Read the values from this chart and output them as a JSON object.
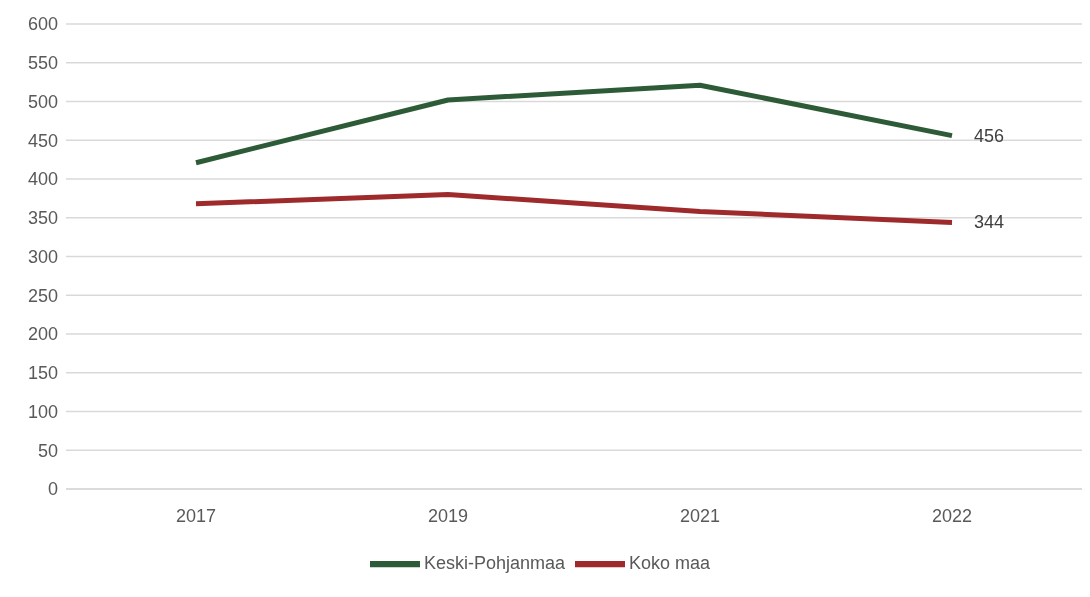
{
  "chart_data": {
    "type": "line",
    "categories": [
      "2017",
      "2019",
      "2021",
      "2022"
    ],
    "series": [
      {
        "name": "Keski-Pohjanmaa",
        "color": "#2e5b37",
        "values": [
          421,
          502,
          521,
          456
        ],
        "value_labels": [
          null,
          null,
          null,
          "456"
        ]
      },
      {
        "name": "Koko maa",
        "color": "#9e2a2b",
        "values": [
          368,
          380,
          358,
          344
        ],
        "value_labels": [
          null,
          null,
          null,
          "344"
        ]
      }
    ],
    "ylim": [
      0,
      600
    ],
    "yticks": [
      0,
      50,
      100,
      150,
      200,
      250,
      300,
      350,
      400,
      450,
      500,
      550,
      600
    ],
    "grid": "y",
    "legend": "bottom",
    "marker": "none",
    "line_style": "solid"
  }
}
